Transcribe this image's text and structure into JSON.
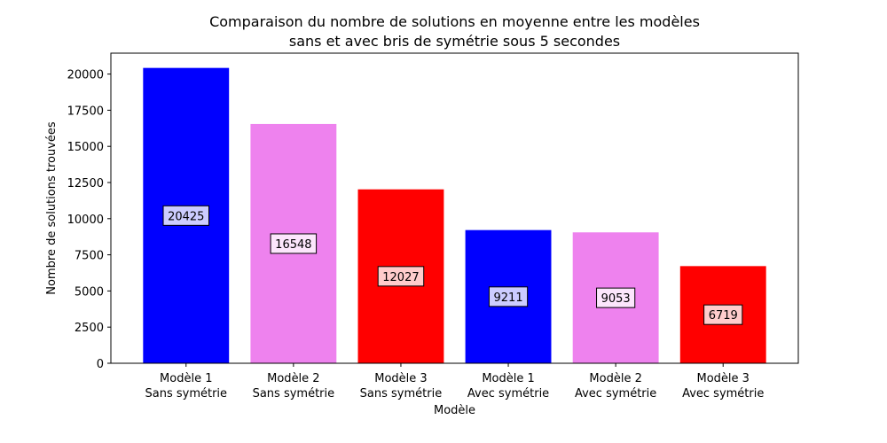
{
  "chart_data": {
    "type": "bar",
    "title_line1": "Comparaison du nombre de solutions en moyenne entre les modèles",
    "title_line2": "sans et avec bris de symétrie sous 5 secondes",
    "xlabel": "Modèle",
    "ylabel": "Nombre de solutions trouvées",
    "categories": [
      [
        "Modèle 1",
        "Sans symétrie"
      ],
      [
        "Modèle 2",
        "Sans symétrie"
      ],
      [
        "Modèle 3",
        "Sans symétrie"
      ],
      [
        "Modèle 1",
        "Avec symétrie"
      ],
      [
        "Modèle 2",
        "Avec symétrie"
      ],
      [
        "Modèle 3",
        "Avec symétrie"
      ]
    ],
    "values": [
      20425,
      16548,
      12027,
      9211,
      9053,
      6719
    ],
    "data_labels": [
      "20425",
      "16548",
      "12027",
      "9211",
      "9053",
      "6719"
    ],
    "bar_colors": [
      "#0000ff",
      "#ee82ee",
      "#ff0000",
      "#0000ff",
      "#ee82ee",
      "#ff0000"
    ],
    "label_box_colors": [
      "#ccccff",
      "#fce6fc",
      "#ffcccc",
      "#ccccff",
      "#fce6fc",
      "#ffcccc"
    ],
    "ylim": [
      0,
      21446
    ],
    "yticks": [
      0,
      2500,
      5000,
      7500,
      10000,
      12500,
      15000,
      17500,
      20000
    ],
    "ytick_labels": [
      "0",
      "2500",
      "5000",
      "7500",
      "10000",
      "12500",
      "15000",
      "17500",
      "20000"
    ],
    "grid": false,
    "legend": "none"
  }
}
